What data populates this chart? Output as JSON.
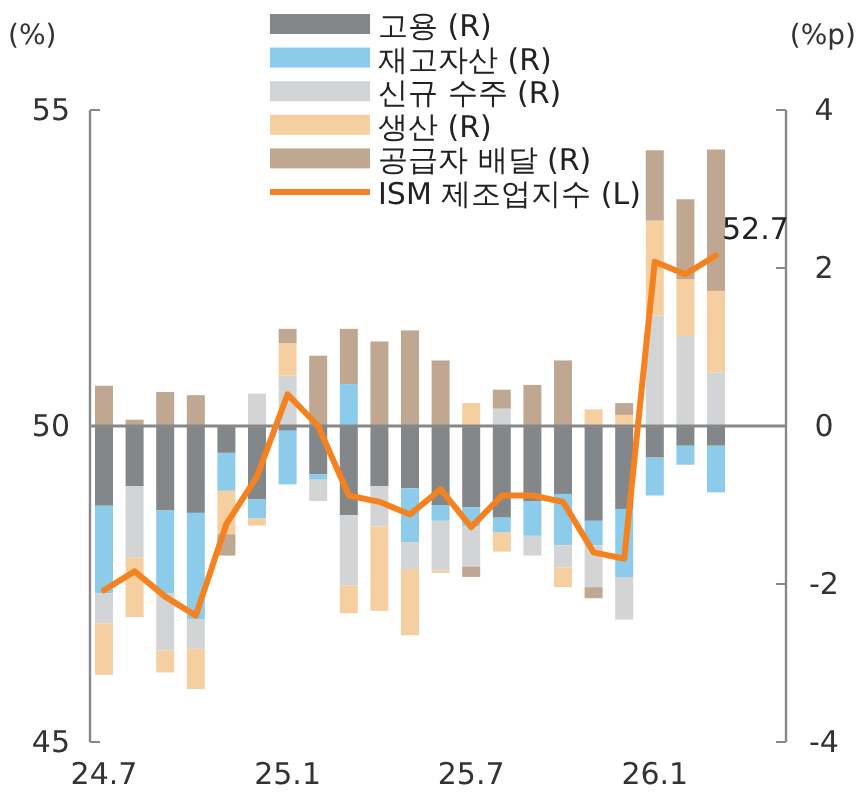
{
  "chart_data": {
    "type": "bar",
    "stacked": true,
    "legend": "top",
    "ylabel": "(%)",
    "y2label": "(%p)",
    "ylim": [
      45,
      55
    ],
    "yticks": [
      45,
      50,
      55
    ],
    "y2lim": [
      -4,
      4
    ],
    "y2ticks": [
      -4,
      -2,
      0,
      2,
      4
    ],
    "categories": [
      "24.7",
      null,
      null,
      null,
      null,
      null,
      "25.1",
      null,
      null,
      null,
      null,
      null,
      "25.7",
      null,
      null,
      null,
      null,
      null,
      "26.1",
      null,
      null
    ],
    "series": [
      {
        "name": "고용 (R)",
        "color": "#84878a",
        "axis": "y2",
        "values": [
          -1.01,
          -0.76,
          -1.07,
          -1.1,
          -0.34,
          -0.93,
          -0.06,
          -0.61,
          -1.13,
          -0.76,
          -0.79,
          -1.0,
          -1.03,
          -1.16,
          -0.95,
          -0.86,
          -1.2,
          -1.05,
          -0.4,
          -0.25,
          -0.25
        ]
      },
      {
        "name": "재고자산 (R)",
        "color": "#8ccbea",
        "axis": "y2",
        "values": [
          -1.11,
          0,
          -1.05,
          -1.35,
          -0.48,
          -0.24,
          -0.68,
          -0.07,
          0.53,
          null,
          -0.68,
          -0.2,
          -0.24,
          -0.19,
          -0.44,
          -0.65,
          -0.31,
          -0.87,
          -0.48,
          -0.24,
          -0.59
        ]
      },
      {
        "name": "신규 수주 (R)",
        "color": "#d3d4d5",
        "axis": "y2",
        "values": [
          -0.38,
          -0.9,
          -0.72,
          -0.37,
          0,
          0.41,
          0.64,
          -0.27,
          -0.89,
          -0.51,
          -0.34,
          -0.63,
          -0.51,
          0.22,
          -0.25,
          -0.28,
          -0.53,
          -0.53,
          1.4,
          1.14,
          0.68
        ]
      },
      {
        "name": "생산 (R)",
        "color": "#f6cfa0",
        "axis": "y2",
        "values": [
          -0.65,
          -0.76,
          -0.28,
          -0.51,
          -0.55,
          -0.09,
          0.41,
          0,
          -0.35,
          -1.07,
          -0.84,
          -0.03,
          0.29,
          -0.24,
          0,
          -0.25,
          0.21,
          0.14,
          1.2,
          0.72,
          1.03
        ]
      },
      {
        "name": "공급자 배달 (R)",
        "color": "#c0a792",
        "axis": "y2",
        "values": [
          0.51,
          0.08,
          0.43,
          0.39,
          -0.27,
          0,
          0.18,
          0.89,
          0.7,
          1.07,
          1.21,
          0.83,
          -0.13,
          0.24,
          0.52,
          0.83,
          -0.14,
          0.15,
          0.89,
          1.01,
          1.79
        ]
      },
      {
        "name": "ISM 제조업지수 (L)",
        "type": "line",
        "color": "#f5821f",
        "axis": "y",
        "values": [
          47.4,
          47.7,
          47.3,
          47.0,
          48.45,
          49.2,
          50.5,
          50.0,
          48.9,
          48.8,
          48.6,
          49.0,
          48.4,
          48.9,
          48.9,
          48.8,
          48.0,
          47.9,
          52.6,
          52.4,
          52.7
        ],
        "value_labels": [
          null,
          null,
          null,
          null,
          null,
          null,
          null,
          null,
          null,
          null,
          null,
          null,
          null,
          null,
          null,
          null,
          null,
          null,
          null,
          null,
          "52.7"
        ]
      }
    ]
  }
}
